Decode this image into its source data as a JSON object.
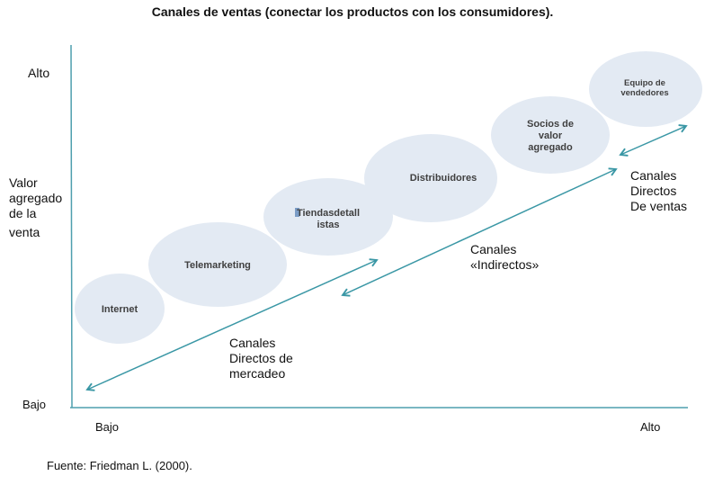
{
  "title": "Canales de ventas (conectar los productos con los consumidores).",
  "y_axis": {
    "label_lines": [
      "Valor",
      "agregado",
      "de la",
      "venta"
    ],
    "high": "Alto",
    "low": "Bajo"
  },
  "x_axis": {
    "low": "Bajo",
    "high": "Alto"
  },
  "channels": [
    {
      "lines": [
        "Internet"
      ]
    },
    {
      "lines": [
        "Telemarketing"
      ]
    },
    {
      "lines": [
        "Tiendasdetall",
        "istas"
      ]
    },
    {
      "lines": [
        "Distribuidores"
      ]
    },
    {
      "lines": [
        "Socios de",
        "valor",
        "agregado"
      ]
    },
    {
      "lines": [
        "Equipo de",
        "vendedores"
      ]
    }
  ],
  "arrow_labels": {
    "direct_marketing": [
      "Canales",
      "Directos de",
      "mercadeo"
    ],
    "indirect": [
      "Canales",
      "«Indirectos»"
    ],
    "direct_sales": [
      "Canales",
      "Directos",
      "De ventas"
    ]
  },
  "source": "Fuente: Friedman L. (2000).",
  "colors": {
    "axis": "#4e9fae",
    "arrow": "#3a97a5",
    "bubble": "#e3eaf3"
  }
}
